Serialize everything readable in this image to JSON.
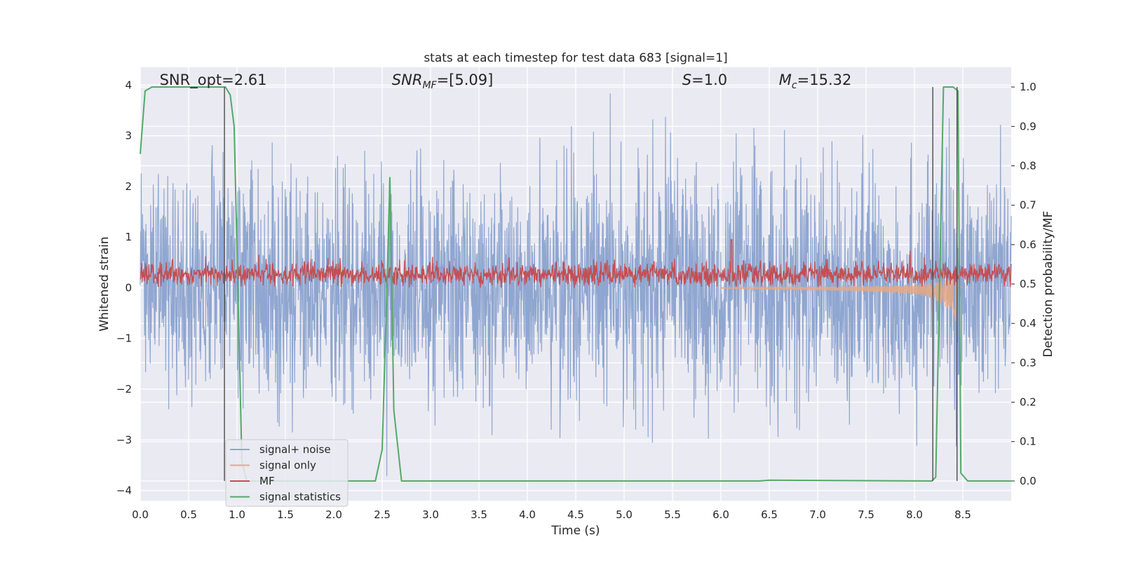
{
  "chart_data": {
    "type": "line",
    "title": "stats at each timestep for test data 683 [signal=1]",
    "xlabel": "Time (s)",
    "ylabel": "Whitened strain",
    "y2label": "Detection probability/MF",
    "xlim": [
      0.0,
      9.0
    ],
    "ylim": [
      -4.2,
      4.35
    ],
    "y2lim": [
      -0.05,
      1.05
    ],
    "xticks": [
      "0.0",
      "0.5",
      "1.0",
      "1.5",
      "2.0",
      "2.5",
      "3.0",
      "3.5",
      "4.0",
      "4.5",
      "5.0",
      "5.5",
      "6.0",
      "6.5",
      "7.0",
      "7.5",
      "8.0",
      "8.5"
    ],
    "yticks": [
      "4",
      "3",
      "2",
      "1",
      "0",
      "−1",
      "−2",
      "−3",
      "−4"
    ],
    "y2ticks": [
      "1.0",
      "0.9",
      "0.8",
      "0.7",
      "0.6",
      "0.5",
      "0.4",
      "0.3",
      "0.2",
      "0.1",
      "0.0"
    ],
    "grid": true,
    "legend_position": "lower-left",
    "annotations": [
      {
        "text": "SNR_opt=2.61",
        "x": 0.2,
        "y": 4.1
      },
      {
        "text": "SNR",
        "sub": "MF",
        "suffix": "=[5.09]",
        "x": 2.6,
        "y": 4.1
      },
      {
        "text": "S",
        "suffix": "=1.0",
        "x": 5.6,
        "y": 4.1
      },
      {
        "text": "M",
        "sub": "c",
        "suffix": "=15.32",
        "x": 6.6,
        "y": 4.1
      }
    ],
    "vlines": [
      0.87,
      8.19,
      8.44
    ],
    "series": [
      {
        "name": "signal+ noise",
        "color": "#8fa6d0",
        "axis": "left",
        "kind": "noise",
        "envelope": {
          "x": [
            0.0,
            1.0,
            2.0,
            3.0,
            4.0,
            5.0,
            6.0,
            7.0,
            8.0,
            9.0
          ],
          "upper": [
            2.7,
            2.8,
            2.7,
            2.8,
            2.9,
            3.0,
            2.9,
            3.0,
            3.0,
            2.8
          ],
          "lower": [
            -2.7,
            -2.8,
            -2.7,
            -2.9,
            -2.9,
            -3.0,
            -2.9,
            -3.0,
            -3.0,
            -2.8
          ]
        }
      },
      {
        "name": "signal only",
        "color": "#e8a883",
        "axis": "left",
        "kind": "chirp",
        "x": [
          6.0,
          6.5,
          7.0,
          7.5,
          8.0,
          8.2,
          8.4,
          8.44,
          8.5
        ],
        "amplitude": [
          0.01,
          0.02,
          0.03,
          0.05,
          0.09,
          0.15,
          0.35,
          0.6,
          0.0
        ]
      },
      {
        "name": "MF",
        "color": "#c44e52",
        "axis": "left",
        "kind": "noise-positive",
        "envelope": {
          "x": [
            0.0,
            4.5,
            6.1,
            9.0
          ],
          "upper": [
            0.55,
            0.6,
            0.65,
            0.55
          ],
          "lower": [
            0.0,
            0.0,
            0.0,
            0.0
          ]
        }
      },
      {
        "name": "signal statistics",
        "color": "#55a868",
        "axis": "right",
        "x": [
          0.0,
          0.05,
          0.12,
          0.3,
          0.6,
          0.85,
          0.88,
          0.93,
          0.97,
          1.05,
          1.1,
          2.43,
          2.5,
          2.55,
          2.58,
          2.62,
          2.7,
          6.4,
          6.5,
          8.18,
          8.22,
          8.3,
          8.4,
          8.45,
          8.48,
          8.55,
          9.0
        ],
        "y": [
          0.83,
          0.99,
          1.0,
          1.0,
          1.0,
          1.0,
          1.0,
          0.98,
          0.9,
          0.05,
          0.0,
          0.0,
          0.08,
          0.5,
          0.77,
          0.18,
          0.0,
          0.0,
          0.002,
          0.0,
          0.01,
          1.0,
          1.0,
          0.99,
          0.02,
          0.0,
          0.0
        ]
      }
    ]
  }
}
